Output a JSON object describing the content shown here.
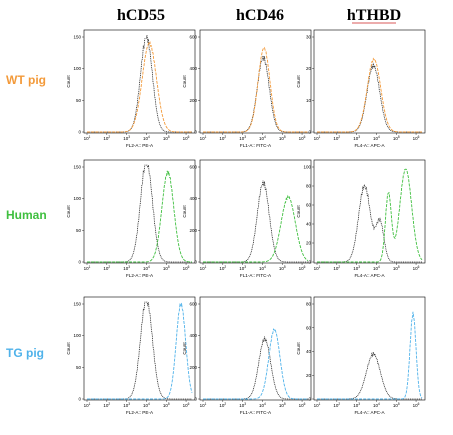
{
  "figure": {
    "column_titles": [
      "hCD55",
      "hCD46",
      "hTHBD"
    ],
    "row_labels": [
      {
        "text": "WT pig",
        "color": "#f39a3a"
      },
      {
        "text": "Human",
        "color": "#3fbf3f"
      },
      {
        "text": "TG pig",
        "color": "#4fb2ea"
      }
    ],
    "control_color": "#222222",
    "underline_color": "#cc2222"
  },
  "chart_data": [
    {
      "type": "line",
      "id": "wt-hcd55",
      "xlabel": "FL2-A:: PE-A",
      "ylabel": "Count",
      "x_scale": "log",
      "x_ticks": [
        "10^1",
        "10^2",
        "10^3",
        "10^4",
        "10^5",
        "10^6"
      ],
      "ylim": [
        0,
        150
      ],
      "y_ticks": [
        0,
        50,
        100,
        150
      ],
      "series": [
        {
          "role": "control",
          "color": "#222222",
          "peak_x": 10000,
          "peak_y": 150,
          "width": 0.3
        },
        {
          "role": "sample",
          "color": "#f39a3a",
          "peak_x": 14000,
          "peak_y": 140,
          "width": 0.36
        }
      ]
    },
    {
      "type": "line",
      "id": "wt-hcd46",
      "xlabel": "FL1-A:: FITC-A",
      "ylabel": "Count",
      "x_scale": "log",
      "x_ticks": [
        "10^1",
        "10^2",
        "10^3",
        "10^4",
        "10^5",
        "10^6"
      ],
      "ylim": [
        0,
        600
      ],
      "y_ticks": [
        0,
        200,
        400,
        600
      ],
      "series": [
        {
          "role": "control",
          "color": "#222222",
          "peak_x": 11000,
          "peak_y": 470,
          "width": 0.3
        },
        {
          "role": "sample",
          "color": "#f39a3a",
          "peak_x": 12000,
          "peak_y": 530,
          "width": 0.3
        }
      ]
    },
    {
      "type": "line",
      "id": "wt-hthbd",
      "xlabel": "FL4-A:: APC-A",
      "ylabel": "Count",
      "x_scale": "log",
      "x_ticks": [
        "10^1",
        "10^2",
        "10^3",
        "10^4",
        "10^5",
        "10^6"
      ],
      "ylim": [
        0,
        30
      ],
      "y_ticks": [
        0,
        10,
        20,
        30
      ],
      "series": [
        {
          "role": "control",
          "color": "#222222",
          "peak_x": 7000,
          "peak_y": 21,
          "width": 0.32
        },
        {
          "role": "sample",
          "color": "#f39a3a",
          "peak_x": 7500,
          "peak_y": 23,
          "width": 0.34
        }
      ]
    },
    {
      "type": "line",
      "id": "human-hcd55",
      "xlabel": "FL2-A:: PE-A",
      "ylabel": "Count",
      "x_scale": "log",
      "x_ticks": [
        "10^1",
        "10^2",
        "10^3",
        "10^4",
        "10^5",
        "10^6"
      ],
      "ylim": [
        0,
        150
      ],
      "y_ticks": [
        0,
        50,
        100,
        150
      ],
      "series": [
        {
          "role": "control",
          "color": "#222222",
          "peak_x": 10000,
          "peak_y": 160,
          "width": 0.3
        },
        {
          "role": "sample",
          "color": "#3fbf3f",
          "peak_x": 120000,
          "peak_y": 142,
          "width": 0.3
        }
      ]
    },
    {
      "type": "line",
      "id": "human-hcd46",
      "xlabel": "FL1-A:: FITC-A",
      "ylabel": "Count",
      "x_scale": "log",
      "x_ticks": [
        "10^1",
        "10^2",
        "10^3",
        "10^4",
        "10^5",
        "10^6"
      ],
      "ylim": [
        0,
        600
      ],
      "y_ticks": [
        0,
        200,
        400,
        600
      ],
      "series": [
        {
          "role": "control",
          "color": "#222222",
          "peak_x": 11000,
          "peak_y": 500,
          "width": 0.3
        },
        {
          "role": "sample",
          "color": "#3fbf3f",
          "peak_x": 200000,
          "peak_y": 410,
          "width": 0.36
        }
      ]
    },
    {
      "type": "line",
      "id": "human-hthbd",
      "xlabel": "FL4-A:: APC-A",
      "ylabel": "Count",
      "x_scale": "log",
      "x_ticks": [
        "10^1",
        "10^2",
        "10^3",
        "10^4",
        "10^5",
        "10^6"
      ],
      "ylim": [
        0,
        100
      ],
      "y_ticks": [
        0,
        20,
        40,
        60,
        80,
        100
      ],
      "series": [
        {
          "role": "control",
          "color": "#222222",
          "peaks": [
            [
              2500,
              80,
              0.3
            ],
            [
              15000,
              42,
              0.2
            ]
          ]
        },
        {
          "role": "sample",
          "color": "#3fbf3f",
          "peaks": [
            [
              40000,
              72,
              0.15
            ],
            [
              300000,
              98,
              0.3
            ]
          ]
        }
      ]
    },
    {
      "type": "line",
      "id": "tg-hcd55",
      "xlabel": "FL2-A:: PE-A",
      "ylabel": "Count",
      "x_scale": "log",
      "x_ticks": [
        "10^1",
        "10^2",
        "10^3",
        "10^4",
        "10^5",
        "10^6"
      ],
      "ylim": [
        0,
        150
      ],
      "y_ticks": [
        0,
        50,
        100,
        150
      ],
      "series": [
        {
          "role": "control",
          "color": "#222222",
          "peak_x": 10000,
          "peak_y": 158,
          "width": 0.3
        },
        {
          "role": "sample",
          "color": "#4fb2ea",
          "peak_x": 550000,
          "peak_y": 150,
          "width": 0.24
        }
      ]
    },
    {
      "type": "line",
      "id": "tg-hcd46",
      "xlabel": "FL1-A:: FITC-A",
      "ylabel": "Count",
      "x_scale": "log",
      "x_ticks": [
        "10^1",
        "10^2",
        "10^3",
        "10^4",
        "10^5",
        "10^6"
      ],
      "ylim": [
        0,
        600
      ],
      "y_ticks": [
        0,
        200,
        400,
        600
      ],
      "series": [
        {
          "role": "control",
          "color": "#222222",
          "peak_x": 13000,
          "peak_y": 380,
          "width": 0.3
        },
        {
          "role": "sample",
          "color": "#4fb2ea",
          "peak_x": 40000,
          "peak_y": 440,
          "width": 0.28
        }
      ]
    },
    {
      "type": "line",
      "id": "tg-hthbd",
      "xlabel": "FL4-A:: APC-A",
      "ylabel": "Count",
      "x_scale": "log",
      "x_ticks": [
        "10^1",
        "10^2",
        "10^3",
        "10^4",
        "10^5",
        "10^6"
      ],
      "ylim": [
        0,
        80
      ],
      "y_ticks": [
        0,
        20,
        40,
        60,
        80
      ],
      "series": [
        {
          "role": "control",
          "color": "#222222",
          "peak_x": 7000,
          "peak_y": 38,
          "width": 0.35
        },
        {
          "role": "sample",
          "color": "#4fb2ea",
          "peak_x": 700000,
          "peak_y": 72,
          "width": 0.15
        }
      ]
    }
  ]
}
